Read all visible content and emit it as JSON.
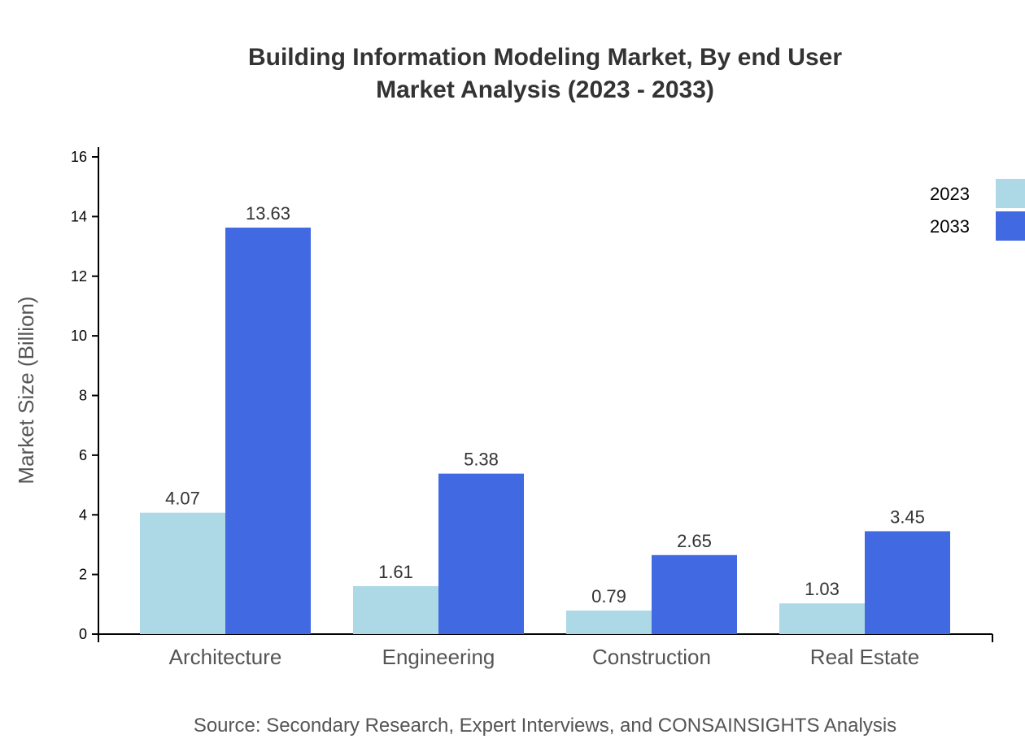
{
  "chart_data": {
    "type": "bar",
    "title": [
      "Building Information Modeling Market, By end User",
      "Market Analysis (2023 - 2033)"
    ],
    "xlabel": "",
    "ylabel": "Market Size (Billion)",
    "ylim": [
      0,
      16
    ],
    "yticks": [
      0,
      2,
      4,
      6,
      8,
      10,
      12,
      14,
      16
    ],
    "categories": [
      "Architecture",
      "Engineering",
      "Construction",
      "Real Estate"
    ],
    "series": [
      {
        "name": "2023",
        "color": "#add8e6",
        "values": [
          4.07,
          1.61,
          0.79,
          1.03
        ]
      },
      {
        "name": "2033",
        "color": "#4169e1",
        "values": [
          13.63,
          5.38,
          2.65,
          3.45
        ]
      }
    ],
    "legend": "top-right",
    "grid": false,
    "source": "Source: Secondary Research, Expert Interviews, and CONSAINSIGHTS Analysis"
  }
}
